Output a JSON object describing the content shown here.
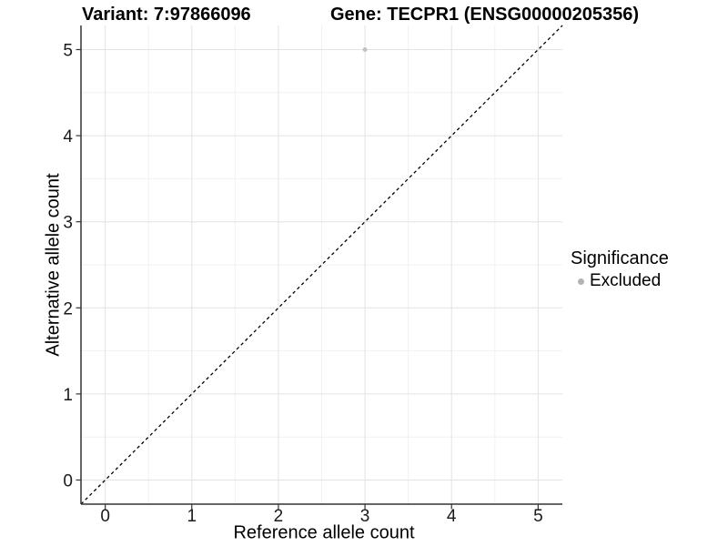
{
  "header": {
    "variant_title": "Variant: 7:97866096",
    "gene_title": "Gene: TECPR1 (ENSG00000205356)"
  },
  "chart_data": {
    "type": "scatter",
    "titles": [
      "Variant: 7:97866096",
      "Gene: TECPR1 (ENSG00000205356)"
    ],
    "xlabel": "Reference allele count",
    "ylabel": "Alternative allele count",
    "x_ticks": [
      0,
      1,
      2,
      3,
      4,
      5
    ],
    "y_ticks": [
      0,
      1,
      2,
      3,
      4,
      5
    ],
    "xlim": [
      -0.28,
      5.28
    ],
    "ylim": [
      -0.28,
      5.28
    ],
    "grid": {
      "major": true,
      "minor": true
    },
    "points": [
      {
        "x": 3,
        "y": 5,
        "series": "Excluded",
        "color": "#c2c2c2",
        "size": 2.5
      }
    ],
    "reference_line": {
      "kind": "identity",
      "from": [
        -0.28,
        -0.28
      ],
      "to": [
        5.28,
        5.28
      ],
      "style": "dashed",
      "color": "#000000"
    },
    "legend_position": "right"
  },
  "legend": {
    "title": "Significance",
    "items": [
      {
        "label": "Excluded",
        "color": "#b3b3b3"
      }
    ]
  },
  "colors": {
    "background": "#ffffff",
    "grid_major": "#e3e3e3",
    "grid_minor": "#f1f1f1",
    "axis_line": "#333333",
    "tick": "#333333",
    "text": "#000000"
  }
}
